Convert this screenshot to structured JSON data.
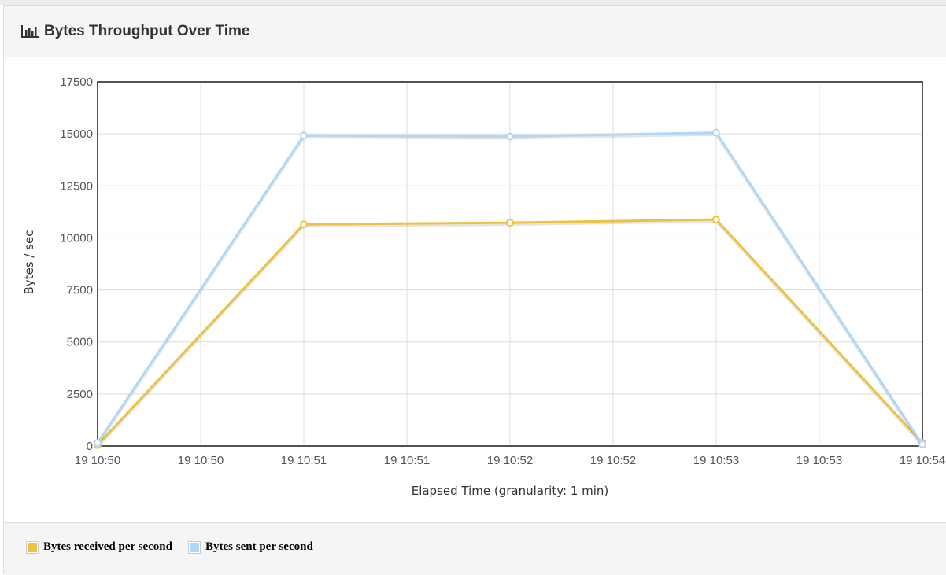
{
  "panel": {
    "title": "Bytes Throughput Over Time",
    "icon": "bar-chart-icon"
  },
  "colors": {
    "received": "#edc240",
    "sent": "#afd8f8",
    "grid": "#dcdcdc",
    "axis_frame": "#545454"
  },
  "chart_data": {
    "type": "line",
    "xlabel": "Elapsed Time (granularity: 1 min)",
    "ylabel": "Bytes / sec",
    "ylim": [
      0,
      17500
    ],
    "yticks": [
      0,
      2500,
      5000,
      7500,
      10000,
      12500,
      15000,
      17500
    ],
    "xticks": [
      "19 10:50",
      "19 10:50",
      "19 10:51",
      "19 10:51",
      "19 10:52",
      "19 10:52",
      "19 10:53",
      "19 10:53",
      "19 10:54"
    ],
    "x": [
      "19 10:50",
      "19 10:51",
      "19 10:52",
      "19 10:53",
      "19 10:54"
    ],
    "grid": true,
    "legend_position": "bottom",
    "series": [
      {
        "name": "Bytes received per second",
        "color": "#edc240",
        "values": [
          50,
          10650,
          10730,
          10880,
          150
        ]
      },
      {
        "name": "Bytes sent per second",
        "color": "#afd8f8",
        "values": [
          150,
          14920,
          14870,
          15060,
          80
        ]
      }
    ]
  }
}
